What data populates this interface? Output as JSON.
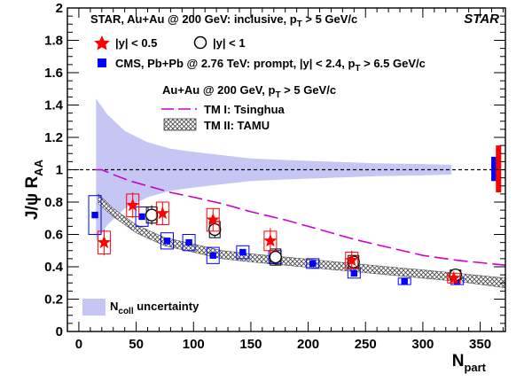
{
  "chart_data": {
    "type": "scatter",
    "experiment_label": "STAR",
    "xlabel": "N",
    "xlabel_sub": "part",
    "ylabel_main": "J/ψ R",
    "ylabel_sub": "AA",
    "xlim": [
      -10,
      372
    ],
    "ylim": [
      0,
      2
    ],
    "x_ticks": [
      0,
      50,
      100,
      150,
      200,
      250,
      300,
      350
    ],
    "y_ticks": [
      0,
      0.2,
      0.4,
      0.6,
      0.8,
      1,
      1.2,
      1.4,
      1.6,
      1.8,
      2
    ],
    "y_tick_labels": [
      "0",
      "0.2",
      "0.4",
      "0.6",
      "0.8",
      "1",
      "1.2",
      "1.4",
      "1.6",
      "1.8",
      "2"
    ],
    "reference_line": 1,
    "colors": {
      "star_red": "#ff0000",
      "cms_blue": "#0000ff",
      "band_fill": "#c6c6f5",
      "tsinghua": "#cc00cc",
      "global_unc_red": "#ff0000",
      "global_unc_blue": "#0000ff"
    },
    "legend": {
      "header": "STAR, Au+Au @ 200 GeV: inclusive, p",
      "header_sub": "T",
      "header_tail": " > 5 GeV/c",
      "star_small": "|y| < 0.5",
      "star_large": "|y| < 1",
      "cms": "CMS, Pb+Pb @ 2.76 TeV: prompt, |y| < 2.4, p",
      "cms_sub": "T",
      "cms_tail": " > 6.5 GeV/c",
      "model_header": "Au+Au @ 200 GeV, p",
      "model_header_sub": "T",
      "model_header_tail": " > 5 GeV/c",
      "tm1": "TM I: Tsinghua",
      "tm2": "TM II: TAMU",
      "ncoll": "N",
      "ncoll_sub": "coll",
      "ncoll_tail": " uncertainty"
    },
    "series": [
      {
        "name": "|y| < 0.5",
        "marker": "star",
        "points": [
          {
            "x": 22,
            "y": 0.55,
            "err": 0.08,
            "sys": 0.07
          },
          {
            "x": 47,
            "y": 0.78,
            "err": 0.08,
            "sys": 0.07
          },
          {
            "x": 73,
            "y": 0.73,
            "err": 0.07,
            "sys": 0.07
          },
          {
            "x": 117,
            "y": 0.69,
            "err": 0.07,
            "sys": 0.07
          },
          {
            "x": 167,
            "y": 0.56,
            "err": 0.08,
            "sys": 0.06
          },
          {
            "x": 238,
            "y": 0.44,
            "err": 0.06,
            "sys": 0.05
          },
          {
            "x": 327,
            "y": 0.33,
            "err": 0.03,
            "sys": 0.03
          }
        ]
      },
      {
        "name": "|y| < 1",
        "marker": "open-circle",
        "points": [
          {
            "x": 62,
            "y": 0.72,
            "err": 0.06,
            "sys": 0.05
          },
          {
            "x": 117,
            "y": 0.63,
            "err": 0.05,
            "sys": 0.05
          },
          {
            "x": 170,
            "y": 0.46,
            "err": 0.05,
            "sys": 0.05
          },
          {
            "x": 238,
            "y": 0.43,
            "err": 0.04,
            "sys": 0.04
          },
          {
            "x": 327,
            "y": 0.35,
            "err": 0.03,
            "sys": 0.03
          }
        ]
      },
      {
        "name": "CMS, Pb+Pb @ 2.76 TeV: prompt, |y| < 2.4, pT > 6.5 GeV/c",
        "marker": "square",
        "points": [
          {
            "x": 14,
            "y": 0.72,
            "sys": 0.12
          },
          {
            "x": 55,
            "y": 0.71,
            "sys": 0.06
          },
          {
            "x": 77,
            "y": 0.56,
            "sys": 0.05
          },
          {
            "x": 96,
            "y": 0.55,
            "sys": 0.05
          },
          {
            "x": 117,
            "y": 0.47,
            "sys": 0.05
          },
          {
            "x": 143,
            "y": 0.49,
            "sys": 0.04
          },
          {
            "x": 171,
            "y": 0.46,
            "sys": 0.04
          },
          {
            "x": 204,
            "y": 0.42,
            "sys": 0.03
          },
          {
            "x": 240,
            "y": 0.36,
            "sys": 0.03
          },
          {
            "x": 284,
            "y": 0.31,
            "sys": 0.02
          },
          {
            "x": 330,
            "y": 0.31,
            "sys": 0.02
          }
        ]
      }
    ],
    "ncoll_band": {
      "x": [
        15,
        25,
        40,
        60,
        80,
        100,
        125,
        150,
        180,
        220,
        260,
        300,
        325
      ],
      "upper": [
        1.44,
        1.34,
        1.24,
        1.17,
        1.13,
        1.11,
        1.09,
        1.07,
        1.06,
        1.05,
        1.04,
        1.035,
        1.03
      ],
      "lower": [
        0.56,
        0.66,
        0.76,
        0.83,
        0.87,
        0.89,
        0.91,
        0.93,
        0.94,
        0.95,
        0.96,
        0.965,
        0.97
      ]
    },
    "tm1_tsinghua": {
      "x": [
        14,
        20,
        30,
        45,
        60,
        80,
        100,
        125,
        150,
        180,
        210,
        240,
        270,
        300,
        330,
        372
      ],
      "y": [
        1.0,
        1.0,
        0.97,
        0.93,
        0.9,
        0.86,
        0.83,
        0.79,
        0.74,
        0.69,
        0.63,
        0.57,
        0.52,
        0.47,
        0.44,
        0.41
      ]
    },
    "tm2_tamu": {
      "x": [
        17,
        30,
        50,
        75,
        100,
        125,
        150,
        180,
        210,
        240,
        270,
        300,
        330,
        372
      ],
      "upper": [
        0.85,
        0.76,
        0.66,
        0.58,
        0.54,
        0.5,
        0.48,
        0.46,
        0.44,
        0.42,
        0.4,
        0.38,
        0.36,
        0.33
      ],
      "lower": [
        0.79,
        0.71,
        0.61,
        0.53,
        0.49,
        0.45,
        0.43,
        0.41,
        0.39,
        0.37,
        0.35,
        0.33,
        0.31,
        0.27
      ]
    },
    "global_uncertainties": [
      {
        "x": 362,
        "low": 0.93,
        "high": 1.08,
        "color": "#0000ff"
      },
      {
        "x": 366,
        "low": 0.86,
        "high": 1.15,
        "color": "#ff0000"
      }
    ]
  }
}
